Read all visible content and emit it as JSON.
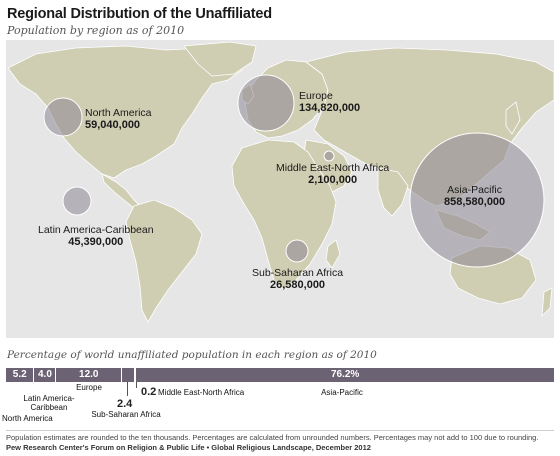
{
  "title": "Regional Distribution of the Unaffiliated",
  "subtitle": "Population by region as of 2010",
  "regions": [
    {
      "name": "North America",
      "population": "59,040,000"
    },
    {
      "name": "Latin America-Caribbean",
      "population": "45,390,000"
    },
    {
      "name": "Europe",
      "population": "134,820,000"
    },
    {
      "name": "Middle East-North Africa",
      "population": "2,100,000"
    },
    {
      "name": "Sub-Saharan Africa",
      "population": "26,580,000"
    },
    {
      "name": "Asia-Pacific",
      "population": "858,580,000"
    }
  ],
  "bar_title": "Percentage of world unaffiliated population in each region as of 2010",
  "shares": [
    {
      "region": "North America",
      "percent": 5.2,
      "label": "5.2"
    },
    {
      "region": "Latin America-Caribbean",
      "percent": 4.0,
      "label": "4.0"
    },
    {
      "region": "Europe",
      "percent": 12.0,
      "label": "12.0"
    },
    {
      "region": "Sub-Saharan Africa",
      "percent": 2.4,
      "label": "2.4"
    },
    {
      "region": "Middle East-North Africa",
      "percent": 0.2,
      "label": "0.2"
    },
    {
      "region": "Asia-Pacific",
      "percent": 76.2,
      "label": "76.2%"
    }
  ],
  "colors": {
    "land": "#cfcdb2",
    "ocean": "#e6e6e6",
    "bubble": "#8e8794",
    "bar": "#6b6373"
  },
  "footnote": "Population estimates are rounded to the ten thousands. Percentages are calculated from unrounded numbers. Percentages may not add to 100 due to rounding.",
  "source": "Pew Research Center's Forum on Religion & Public Life • Global Religious Landscape, December 2012"
}
